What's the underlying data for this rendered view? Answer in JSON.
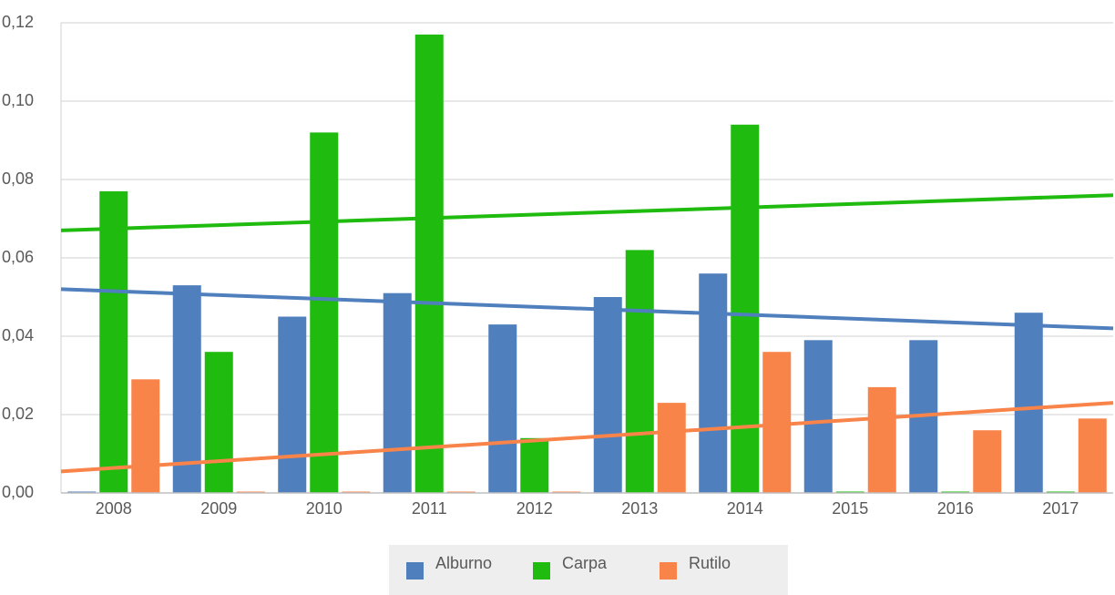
{
  "chart_data": {
    "type": "bar",
    "categories": [
      "2008",
      "2009",
      "2010",
      "2011",
      "2012",
      "2013",
      "2014",
      "2015",
      "2016",
      "2017"
    ],
    "series": [
      {
        "name": "Alburno",
        "color": "#4f7fbd",
        "values": [
          0,
          0.053,
          0.045,
          0.051,
          0.043,
          0.05,
          0.056,
          0.039,
          0.039,
          0.046
        ],
        "trendline": [
          0.052,
          0.042
        ]
      },
      {
        "name": "Carpa",
        "color": "#1fbb0f",
        "values": [
          0.077,
          0.036,
          0.092,
          0.117,
          0.014,
          0.062,
          0.094,
          0,
          0,
          0
        ],
        "trendline": [
          0.067,
          0.076
        ]
      },
      {
        "name": "Rutilo",
        "color": "#f9844a",
        "values": [
          0.029,
          0,
          0,
          0,
          0,
          0.023,
          0.036,
          0.027,
          0.016,
          0.019
        ],
        "trendline": [
          0.0055,
          0.023
        ]
      }
    ],
    "ylim": [
      0,
      0.12
    ],
    "yticks": [
      {
        "value": 0,
        "label": "0,00"
      },
      {
        "value": 0.02,
        "label": "0,02"
      },
      {
        "value": 0.04,
        "label": "0,04"
      },
      {
        "value": 0.06,
        "label": "0,06"
      },
      {
        "value": 0.08,
        "label": "0,08"
      },
      {
        "value": 0.1,
        "label": "0,10"
      },
      {
        "value": 0.12,
        "label": "0,12"
      }
    ],
    "grid": true,
    "legend": "bottom"
  }
}
